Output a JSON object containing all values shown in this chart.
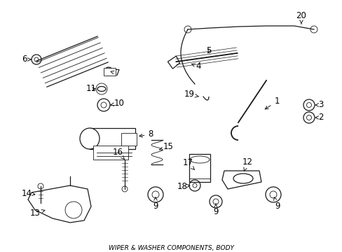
{
  "title": "WIPER & WASHER COMPONENTS, BODY",
  "background_color": "#ffffff",
  "line_color": "#1a1a1a",
  "label_color": "#000000",
  "fig_width": 4.89,
  "fig_height": 3.6,
  "dpi": 100,
  "imgw": 489,
  "imgh": 360
}
